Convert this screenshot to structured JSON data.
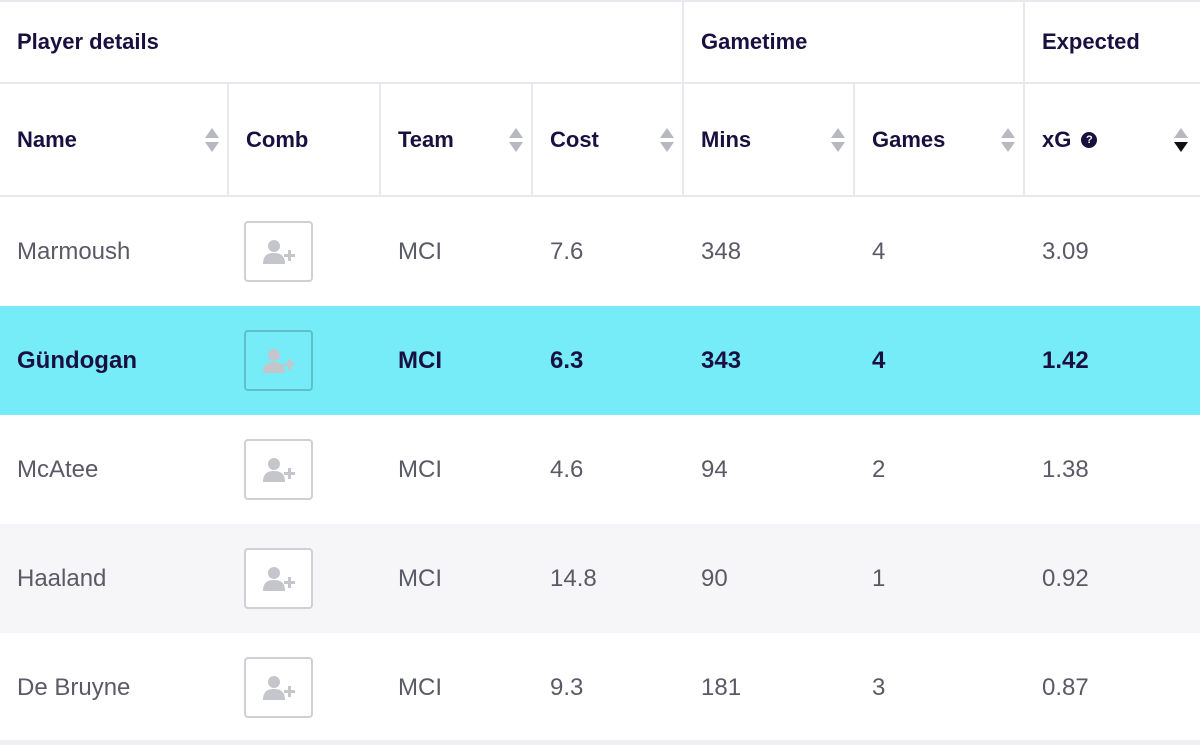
{
  "groups": {
    "player_details": "Player details",
    "gametime": "Gametime",
    "expected": "Expected"
  },
  "columns": {
    "name": "Name",
    "comb": "Comb",
    "team": "Team",
    "cost": "Cost",
    "mins": "Mins",
    "games": "Games",
    "xg": "xG"
  },
  "help_glyph": "?",
  "icons": {
    "add_player": "user-plus-icon",
    "help": "help-icon",
    "sort": "sort-icon"
  },
  "colors": {
    "highlight": "#75ecf8",
    "header_text": "#1a1040"
  },
  "sort": {
    "column": "xg",
    "direction": "descending"
  },
  "rows": [
    {
      "name": "Marmoush",
      "team": "MCI",
      "cost": "7.6",
      "mins": "348",
      "games": "4",
      "xg": "3.09",
      "highlighted": false
    },
    {
      "name": "Gündogan",
      "team": "MCI",
      "cost": "6.3",
      "mins": "343",
      "games": "4",
      "xg": "1.42",
      "highlighted": true
    },
    {
      "name": "McAtee",
      "team": "MCI",
      "cost": "4.6",
      "mins": "94",
      "games": "2",
      "xg": "1.38",
      "highlighted": false
    },
    {
      "name": "Haaland",
      "team": "MCI",
      "cost": "14.8",
      "mins": "90",
      "games": "1",
      "xg": "0.92",
      "highlighted": false
    },
    {
      "name": "De Bruyne",
      "team": "MCI",
      "cost": "9.3",
      "mins": "181",
      "games": "3",
      "xg": "0.87",
      "highlighted": false
    }
  ]
}
